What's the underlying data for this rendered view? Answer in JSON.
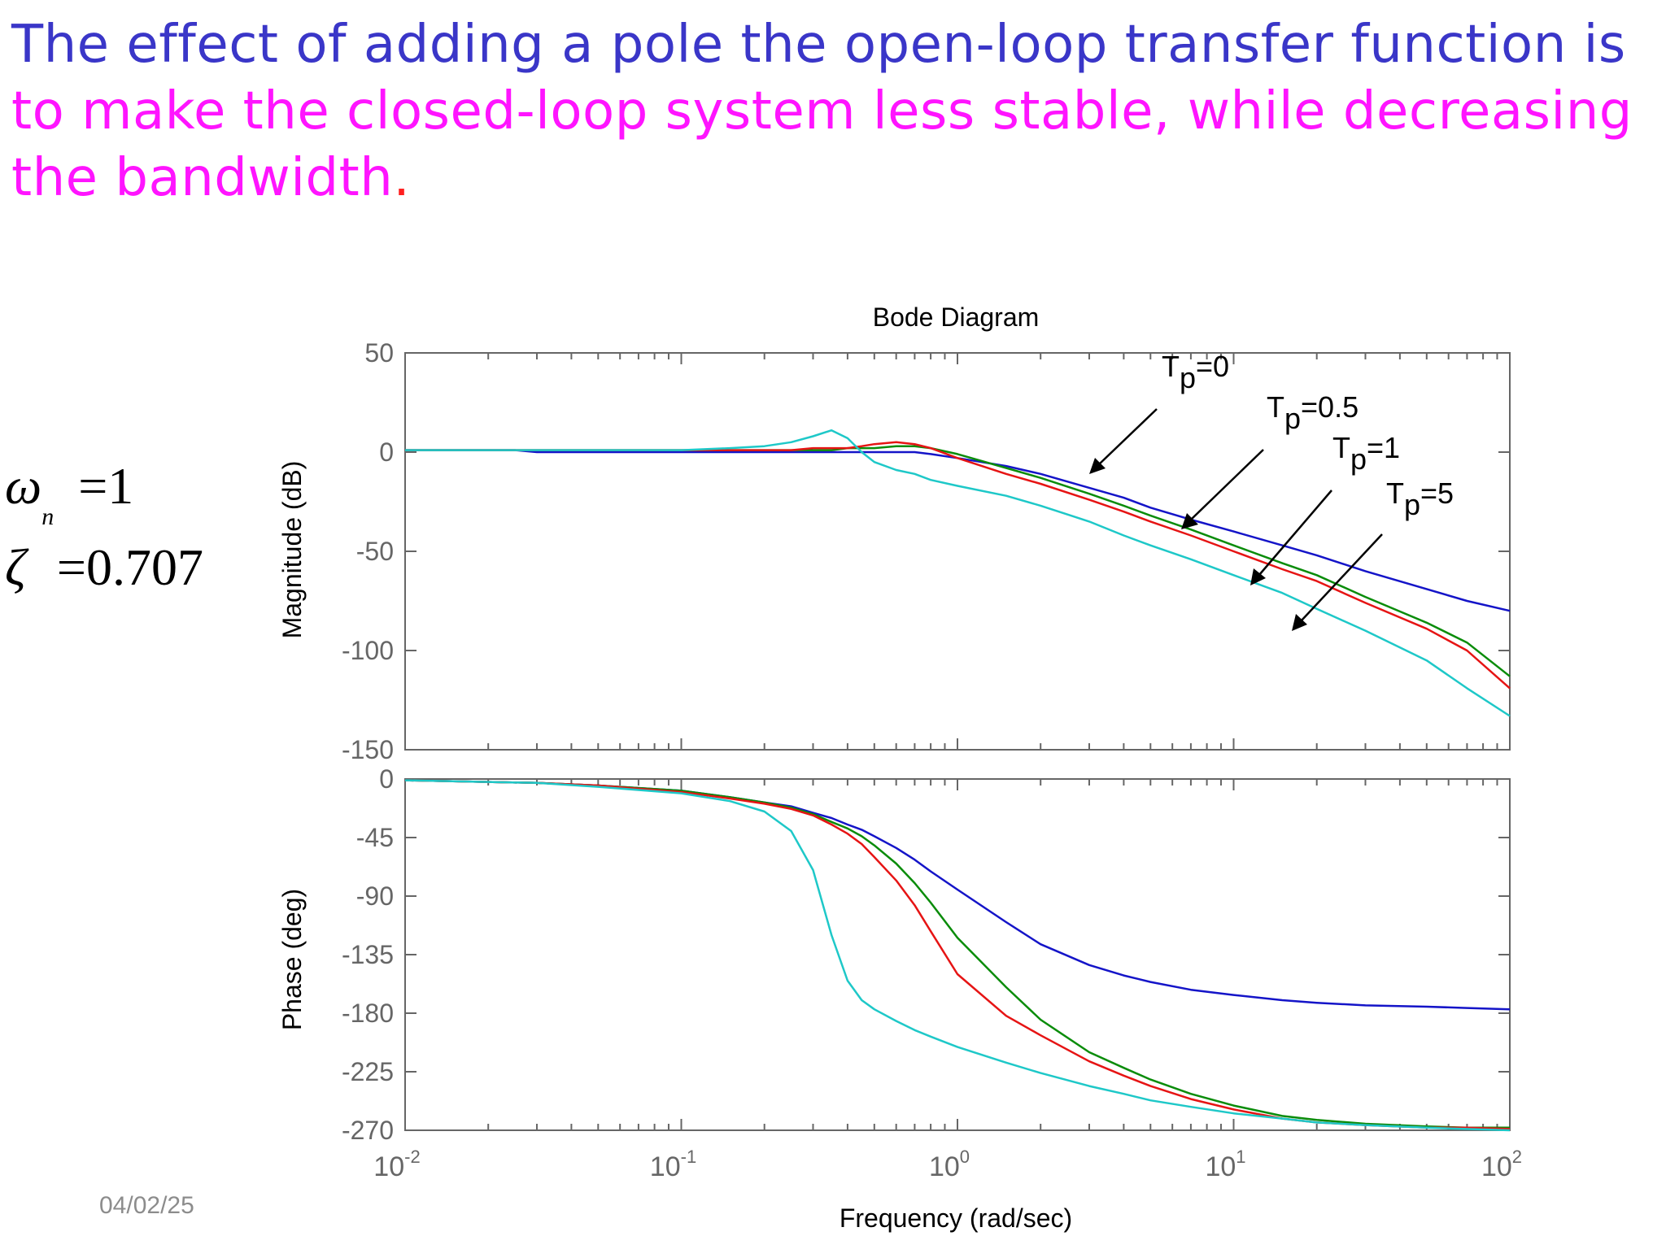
{
  "slide": {
    "title_line1": "The effect of adding a pole the open-loop transfer function is",
    "title_line2": "to make the closed-loop system less stable, while decreasing",
    "title_line3_text": "the bandwidth",
    "title_line3_period": ".",
    "colors": {
      "line1": "#3a36c8",
      "highlight": "#ff14ff",
      "period": "#ff2020"
    },
    "params": [
      {
        "symbol": "ω",
        "subscript": "n",
        "equals": "=",
        "value": "1"
      },
      {
        "symbol": "ζ",
        "subscript": "",
        "equals": "=",
        "value": "0.707"
      }
    ],
    "date": "04/02/25"
  },
  "chart_data": {
    "type": "line",
    "title": "Bode Diagram",
    "xlabel": "Frequency  (rad/sec)",
    "x_scale": "log",
    "xlim": [
      0.01,
      100
    ],
    "x_ticks": [
      {
        "base": "10",
        "exp": "-2"
      },
      {
        "base": "10",
        "exp": "-1"
      },
      {
        "base": "10",
        "exp": "0"
      },
      {
        "base": "10",
        "exp": "1"
      },
      {
        "base": "10",
        "exp": "2"
      }
    ],
    "series_colors": {
      "Tp=0": "#1414c8",
      "Tp=0.5": "#0a8c0a",
      "Tp=1": "#e61414",
      "Tp=5": "#1ec8c8"
    },
    "annotations": [
      {
        "base": "T",
        "sub": "p",
        "rest": "=0",
        "series": "Tp=0"
      },
      {
        "base": "T",
        "sub": "p",
        "rest": "=0.5",
        "series": "Tp=0.5"
      },
      {
        "base": "T",
        "sub": "p",
        "rest": "=1",
        "series": "Tp=1"
      },
      {
        "base": "T",
        "sub": "p",
        "rest": "=5",
        "series": "Tp=5"
      }
    ],
    "magnitude": {
      "ylabel": "Magnitude (dB)",
      "ylim": [
        -150,
        50
      ],
      "y_ticks": [
        "50",
        "0",
        "-50",
        "-100",
        "-150"
      ],
      "x": [
        0.01,
        0.025,
        0.03,
        0.1,
        0.15,
        0.2,
        0.25,
        0.3,
        0.35,
        0.4,
        0.45,
        0.5,
        0.6,
        0.7,
        0.8,
        1,
        1.5,
        2,
        3,
        4,
        5,
        7,
        10,
        15,
        20,
        30,
        50,
        70,
        100
      ],
      "series": [
        {
          "name": "Tp=0",
          "values": [
            1,
            1,
            0,
            0,
            0,
            0,
            0,
            0,
            0,
            0,
            0,
            0,
            0,
            0,
            -1,
            -3,
            -7,
            -11,
            -18,
            -23,
            -28,
            -34,
            -40,
            -47,
            -52,
            -60,
            -69,
            -75,
            -80
          ]
        },
        {
          "name": "Tp=0.5",
          "values": [
            1,
            1,
            1,
            1,
            1,
            1,
            1,
            1,
            1,
            2,
            2,
            2,
            3,
            3,
            2,
            -1,
            -8,
            -13,
            -21,
            -27,
            -32,
            -39,
            -47,
            -56,
            -62,
            -73,
            -86,
            -96,
            -113
          ]
        },
        {
          "name": "Tp=1",
          "values": [
            1,
            1,
            1,
            1,
            1,
            1,
            1,
            2,
            2,
            2,
            3,
            4,
            5,
            4,
            2,
            -3,
            -11,
            -16,
            -24,
            -30,
            -35,
            -42,
            -50,
            -59,
            -65,
            -76,
            -89,
            -100,
            -119
          ]
        },
        {
          "name": "Tp=5",
          "values": [
            1,
            1,
            1,
            1,
            2,
            3,
            5,
            8,
            11,
            7,
            0,
            -5,
            -9,
            -11,
            -14,
            -17,
            -22,
            -27,
            -35,
            -42,
            -47,
            -54,
            -62,
            -71,
            -79,
            -90,
            -105,
            -119,
            -133
          ]
        }
      ]
    },
    "phase": {
      "ylabel": "Phase (deg)",
      "ylim": [
        -270,
        0
      ],
      "y_ticks": [
        "0",
        "-45",
        "-90",
        "-135",
        "-180",
        "-225",
        "-270"
      ],
      "x": [
        0.01,
        0.03,
        0.05,
        0.1,
        0.15,
        0.2,
        0.25,
        0.3,
        0.35,
        0.4,
        0.45,
        0.5,
        0.6,
        0.7,
        0.8,
        1,
        1.5,
        2,
        3,
        4,
        5,
        7,
        10,
        15,
        20,
        30,
        50,
        70,
        100
      ],
      "series": [
        {
          "name": "Tp=0",
          "values": [
            -1,
            -3,
            -5,
            -9,
            -14,
            -18,
            -21,
            -26,
            -30,
            -35,
            -39,
            -44,
            -53,
            -62,
            -71,
            -85,
            -110,
            -127,
            -143,
            -151,
            -156,
            -162,
            -166,
            -170,
            -172,
            -174,
            -175,
            -176,
            -177
          ]
        },
        {
          "name": "Tp=0.5",
          "values": [
            -1,
            -3,
            -5,
            -9,
            -14,
            -18,
            -22,
            -27,
            -33,
            -38,
            -44,
            -51,
            -65,
            -80,
            -95,
            -122,
            -160,
            -185,
            -210,
            -222,
            -231,
            -242,
            -251,
            -259,
            -262,
            -265,
            -267,
            -268,
            -268
          ]
        },
        {
          "name": "Tp=1",
          "values": [
            -1,
            -3,
            -5,
            -10,
            -15,
            -19,
            -23,
            -28,
            -35,
            -42,
            -50,
            -60,
            -78,
            -97,
            -117,
            -150,
            -182,
            -197,
            -217,
            -228,
            -236,
            -246,
            -254,
            -261,
            -264,
            -266,
            -268,
            -268,
            -269
          ]
        },
        {
          "name": "Tp=5",
          "values": [
            -1,
            -3,
            -6,
            -11,
            -17,
            -25,
            -40,
            -70,
            -120,
            -155,
            -170,
            -177,
            -186,
            -193,
            -198,
            -206,
            -218,
            -226,
            -236,
            -242,
            -247,
            -252,
            -257,
            -261,
            -264,
            -266,
            -268,
            -269,
            -270
          ]
        }
      ]
    }
  }
}
